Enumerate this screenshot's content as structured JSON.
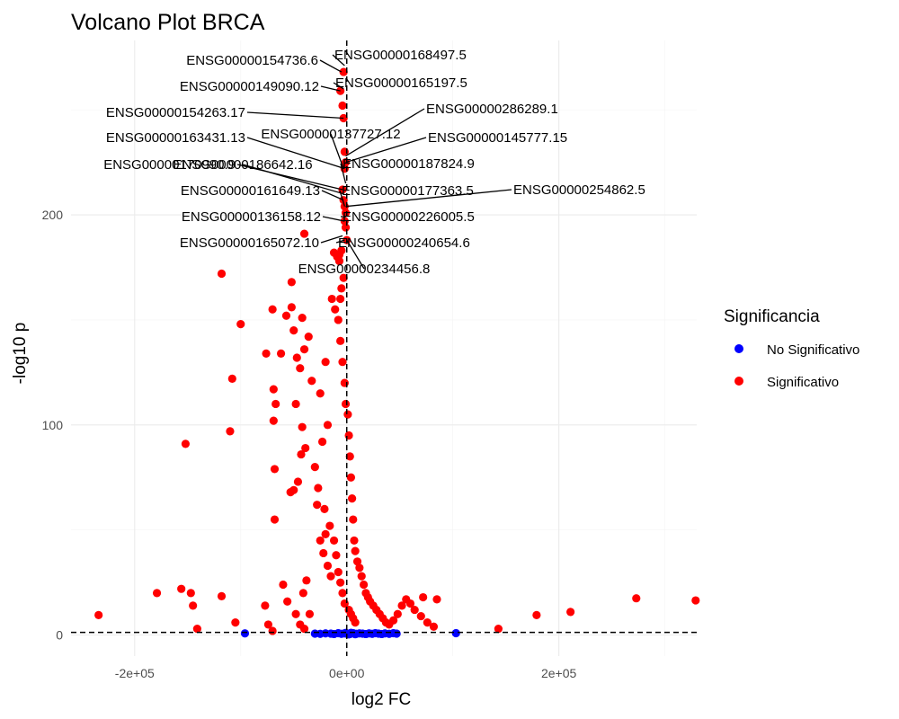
{
  "chart_data": {
    "type": "scatter",
    "title": "Volcano Plot BRCA",
    "xlabel": "log2 FC",
    "ylabel": "-log10 p",
    "xlim": [
      -260000,
      330000
    ],
    "ylim": [
      -10,
      283
    ],
    "x_ticks": [
      {
        "value": -200000,
        "label": "-2e+05"
      },
      {
        "value": 0,
        "label": "0e+00"
      },
      {
        "value": 200000,
        "label": "2e+05"
      }
    ],
    "y_ticks": [
      {
        "value": 0,
        "label": "0"
      },
      {
        "value": 100,
        "label": "100"
      },
      {
        "value": 200,
        "label": "200"
      }
    ],
    "grid": true,
    "reference_lines": {
      "vertical_x": 0,
      "horizontal_y": 1.3
    },
    "legend": {
      "title": "Significancia",
      "placement": "right",
      "entries": [
        {
          "name": "No Significativo",
          "color": "#0000ff"
        },
        {
          "name": "Significativo",
          "color": "#ff0000"
        }
      ]
    },
    "series": [
      {
        "name": "No Significativo",
        "color": "#0000ff",
        "points": [
          [
            -96000,
            0.8
          ],
          [
            103000,
            0.9
          ],
          [
            -25000,
            0.6
          ],
          [
            -20000,
            0.8
          ],
          [
            -15000,
            0.7
          ],
          [
            -12000,
            0.5
          ],
          [
            -8000,
            0.9
          ],
          [
            -5000,
            0.6
          ],
          [
            -2000,
            0.8
          ],
          [
            0,
            0.7
          ],
          [
            3000,
            0.5
          ],
          [
            6000,
            0.9
          ],
          [
            9000,
            0.6
          ],
          [
            12000,
            0.8
          ],
          [
            15000,
            0.7
          ],
          [
            18000,
            0.5
          ],
          [
            21000,
            0.8
          ],
          [
            24000,
            0.6
          ],
          [
            27000,
            0.9
          ],
          [
            30000,
            0.7
          ],
          [
            33000,
            0.5
          ],
          [
            36000,
            0.8
          ],
          [
            40000,
            0.6
          ],
          [
            44000,
            0.9
          ],
          [
            47000,
            0.7
          ],
          [
            -30000,
            0.7
          ],
          [
            -1000,
            1.0
          ],
          [
            2000,
            0.3
          ],
          [
            4000,
            1.1
          ],
          [
            8000,
            0.4
          ]
        ]
      },
      {
        "name": "Significativo",
        "color": "#ff0000",
        "points": [
          [
            -234000,
            9.5
          ],
          [
            -179000,
            20
          ],
          [
            -156000,
            22
          ],
          [
            -147000,
            20
          ],
          [
            -145000,
            14
          ],
          [
            -141000,
            3
          ],
          [
            -118000,
            18.5
          ],
          [
            -152000,
            91
          ],
          [
            -110000,
            97
          ],
          [
            -118000,
            172
          ],
          [
            -100000,
            148
          ],
          [
            -108000,
            122
          ],
          [
            -105000,
            6
          ],
          [
            -77000,
            14
          ],
          [
            -74000,
            5
          ],
          [
            -70000,
            2
          ],
          [
            -68000,
            55
          ],
          [
            -68000,
            79
          ],
          [
            -69000,
            102
          ],
          [
            -69000,
            117
          ],
          [
            -67000,
            110
          ],
          [
            -62000,
            134
          ],
          [
            -76000,
            134
          ],
          [
            -70000,
            155
          ],
          [
            -57000,
            152
          ],
          [
            -52000,
            168
          ],
          [
            -52000,
            156
          ],
          [
            -50000,
            145
          ],
          [
            -47000,
            132
          ],
          [
            -48000,
            110
          ],
          [
            -42000,
            99
          ],
          [
            -46000,
            73
          ],
          [
            -50000,
            69
          ],
          [
            -53000,
            68
          ],
          [
            -43000,
            86
          ],
          [
            -60000,
            24
          ],
          [
            -56000,
            16
          ],
          [
            -48000,
            10
          ],
          [
            -44000,
            5
          ],
          [
            -40000,
            3
          ],
          [
            -41000,
            20
          ],
          [
            -38000,
            26
          ],
          [
            -35000,
            10
          ],
          [
            -42000,
            151
          ],
          [
            -40000,
            136
          ],
          [
            -44000,
            127
          ],
          [
            -36000,
            142
          ],
          [
            -39000,
            89
          ],
          [
            -33000,
            121
          ],
          [
            -40000,
            191
          ],
          [
            -28000,
            62
          ],
          [
            -25000,
            45
          ],
          [
            -22000,
            39
          ],
          [
            -18000,
            33
          ],
          [
            -15000,
            28
          ],
          [
            -12000,
            182
          ],
          [
            -9000,
            180
          ],
          [
            -7000,
            178
          ],
          [
            -14000,
            160
          ],
          [
            -11000,
            155
          ],
          [
            -8000,
            150
          ],
          [
            -6000,
            140
          ],
          [
            -4000,
            130
          ],
          [
            -2000,
            120
          ],
          [
            -1000,
            110
          ],
          [
            1000,
            105
          ],
          [
            2000,
            95
          ],
          [
            3000,
            85
          ],
          [
            4000,
            75
          ],
          [
            5000,
            65
          ],
          [
            6000,
            55
          ],
          [
            7000,
            45
          ],
          [
            8000,
            40
          ],
          [
            10000,
            35
          ],
          [
            12000,
            32
          ],
          [
            14000,
            28
          ],
          [
            16000,
            24
          ],
          [
            18000,
            20
          ],
          [
            20000,
            18
          ],
          [
            22000,
            16
          ],
          [
            25000,
            14
          ],
          [
            28000,
            12
          ],
          [
            31000,
            10
          ],
          [
            34000,
            8
          ],
          [
            37000,
            6
          ],
          [
            40000,
            5
          ],
          [
            44000,
            7
          ],
          [
            48000,
            10
          ],
          [
            52000,
            14
          ],
          [
            56000,
            17
          ],
          [
            60000,
            15
          ],
          [
            64000,
            12
          ],
          [
            70000,
            9
          ],
          [
            76000,
            6
          ],
          [
            82000,
            4
          ],
          [
            72000,
            18
          ],
          [
            85000,
            17
          ],
          [
            -3000,
            268
          ],
          [
            -6000,
            259
          ],
          [
            -4000,
            252
          ],
          [
            -3000,
            246
          ],
          [
            -2000,
            230
          ],
          [
            -1000,
            225
          ],
          [
            -2000,
            222
          ],
          [
            -4000,
            212
          ],
          [
            -3000,
            207
          ],
          [
            -2000,
            204
          ],
          [
            -1000,
            201
          ],
          [
            -2000,
            197
          ],
          [
            -1000,
            194
          ],
          [
            0,
            188
          ],
          [
            -5000,
            183
          ],
          [
            -7000,
            181
          ],
          [
            -3000,
            170
          ],
          [
            -5000,
            165
          ],
          [
            -6000,
            160
          ],
          [
            -20000,
            130
          ],
          [
            -25000,
            115
          ],
          [
            -18000,
            100
          ],
          [
            -23000,
            92
          ],
          [
            -30000,
            80
          ],
          [
            -27000,
            70
          ],
          [
            -21000,
            60
          ],
          [
            -16000,
            52
          ],
          [
            -20000,
            48
          ],
          [
            -12000,
            45
          ],
          [
            -10000,
            38
          ],
          [
            -8000,
            30
          ],
          [
            -6000,
            25
          ],
          [
            -4000,
            20
          ],
          [
            -2000,
            15
          ],
          [
            2000,
            12
          ],
          [
            4000,
            10
          ],
          [
            6000,
            8
          ],
          [
            8000,
            6
          ],
          [
            143000,
            3
          ],
          [
            179000,
            9.5
          ],
          [
            211000,
            11
          ],
          [
            273000,
            17.5
          ],
          [
            329000,
            16.5
          ]
        ]
      }
    ],
    "annotations": [
      {
        "label": "ENSG00000154736.6",
        "point": [
          -5000,
          268
        ],
        "anchor": "end"
      },
      {
        "label": "ENSG00000168497.5",
        "point": [
          -2000,
          271
        ],
        "anchor": "start"
      },
      {
        "label": "ENSG00000149090.12",
        "point": [
          -6000,
          259
        ],
        "anchor": "end"
      },
      {
        "label": "ENSG00000165197.5",
        "point": [
          -3000,
          260
        ],
        "anchor": "start"
      },
      {
        "label": "ENSG00000154263.17",
        "point": [
          -3000,
          246
        ],
        "anchor": "end"
      },
      {
        "label": "ENSG00000286289.1",
        "point": [
          -1000,
          228
        ],
        "anchor": "start"
      },
      {
        "label": "ENSG00000163431.13",
        "point": [
          -2000,
          222
        ],
        "anchor": "end"
      },
      {
        "label": "ENSG00000137727.12",
        "point": [
          -3000,
          222
        ],
        "anchor": "middle"
      },
      {
        "label": "ENSG00000145777.15",
        "point": [
          -1000,
          225
        ],
        "anchor": "start"
      },
      {
        "label": "ENSG00000170990.9",
        "point": [
          -4000,
          212
        ],
        "anchor": "end"
      },
      {
        "label": "ENSG00000186642.16",
        "point": [
          -3000,
          210
        ],
        "anchor": "middle"
      },
      {
        "label": "ENSG00000187824.9",
        "point": [
          -1000,
          215
        ],
        "anchor": "start"
      },
      {
        "label": "ENSG00000161649.13",
        "point": [
          -3000,
          207
        ],
        "anchor": "end"
      },
      {
        "label": "ENSG00000177363.5",
        "point": [
          -2000,
          204
        ],
        "anchor": "start"
      },
      {
        "label": "ENSG00000254862.5",
        "point": [
          -1000,
          204
        ],
        "anchor": "start"
      },
      {
        "label": "ENSG00000136158.12",
        "point": [
          -2000,
          197
        ],
        "anchor": "end"
      },
      {
        "label": "ENSG00000226005.5",
        "point": [
          -1000,
          199
        ],
        "anchor": "start"
      },
      {
        "label": "ENSG00000165072.10",
        "point": [
          -4000,
          190
        ],
        "anchor": "end"
      },
      {
        "label": "ENSG00000240654.6",
        "point": [
          -2000,
          188
        ],
        "anchor": "start"
      },
      {
        "label": "ENSG00000234456.8",
        "point": [
          0,
          188
        ],
        "anchor": "middle"
      }
    ]
  }
}
